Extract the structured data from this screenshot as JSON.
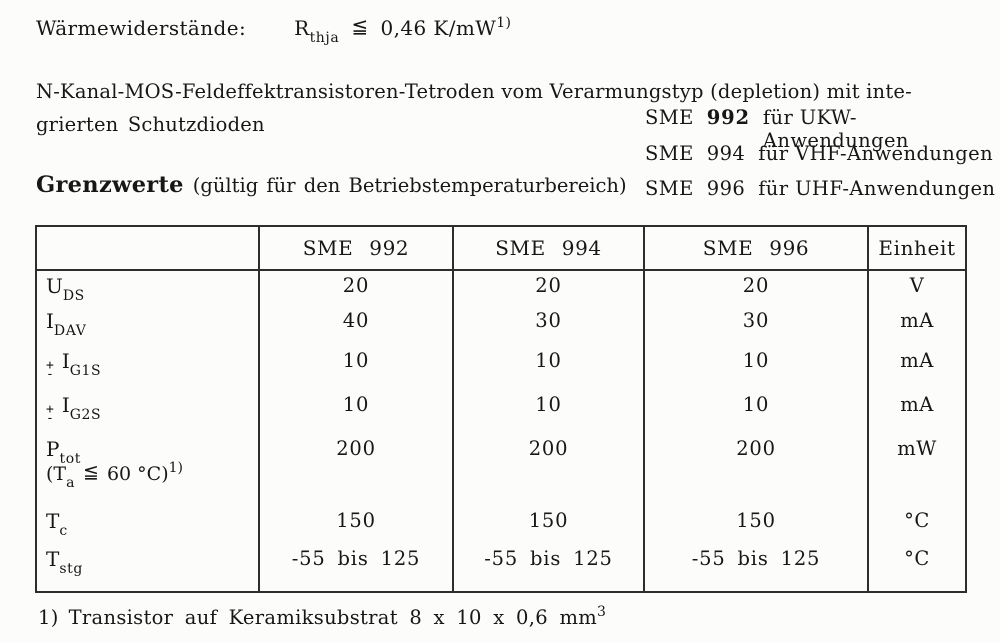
{
  "thermal": {
    "label": "Wärmewiderstände:",
    "symbol_main": "R",
    "symbol_sub": "thja",
    "relation": "≦",
    "value": "0,46 K/mW",
    "footnote_ref": "1)"
  },
  "description": {
    "line1": "N-Kanal-MOS-Feldeffektransistoren-Tetroden vom Verarmungstyp (depletion) mit inte-",
    "line2": "grierten Schutzdioden"
  },
  "applications": [
    {
      "prefix": "SME",
      "number": "992",
      "suffix": "für UKW-Anwendungen",
      "emphasis": true
    },
    {
      "prefix": "SME",
      "number": "994",
      "suffix": "für VHF-Anwendungen",
      "emphasis": false
    },
    {
      "prefix": "SME",
      "number": "996",
      "suffix": "für UHF-Anwendungen",
      "emphasis": false
    }
  ],
  "limits_heading": {
    "title": "Grenzwerte",
    "subtitle": "(gültig für den Betriebstemperaturbereich)"
  },
  "table": {
    "headers": [
      "",
      "SME 992",
      "SME 994",
      "SME 996",
      "Einheit"
    ],
    "pm_plus": "+",
    "pm_minus": "-",
    "rows": [
      {
        "param_main": "U",
        "param_sub": "DS",
        "pm": false,
        "values": [
          "20",
          "20",
          "20"
        ],
        "unit": "V"
      },
      {
        "param_main": "I",
        "param_sub": "DAV",
        "pm": false,
        "values": [
          "40",
          "30",
          "30"
        ],
        "unit": "mA"
      },
      {
        "param_main": "I",
        "param_sub": "G1S",
        "pm": true,
        "values": [
          "10",
          "10",
          "10"
        ],
        "unit": "mA"
      },
      {
        "param_main": "I",
        "param_sub": "G2S",
        "pm": true,
        "values": [
          "10",
          "10",
          "10"
        ],
        "unit": "mA"
      },
      {
        "param_main": "P",
        "param_sub": "tot",
        "pm": false,
        "condition": {
          "pre": "(T",
          "sub": "a",
          "relation": "≦",
          "mid": "60 °C)",
          "sup": "1)"
        },
        "values": [
          "200",
          "200",
          "200"
        ],
        "unit": "mW"
      },
      {
        "param_main": "T",
        "param_sub": "c",
        "pm": false,
        "values": [
          "150",
          "150",
          "150"
        ],
        "unit": "°C"
      },
      {
        "param_main": "T",
        "param_sub": "stg",
        "pm": false,
        "values": [
          "-55 bis 125",
          "-55 bis 125",
          "-55 bis 125"
        ],
        "unit": "°C"
      }
    ]
  },
  "footnote": {
    "ref": "1)",
    "text": "Transistor auf Keramiksubstrat 8 x 10 x 0,6 mm",
    "sup": "3"
  }
}
